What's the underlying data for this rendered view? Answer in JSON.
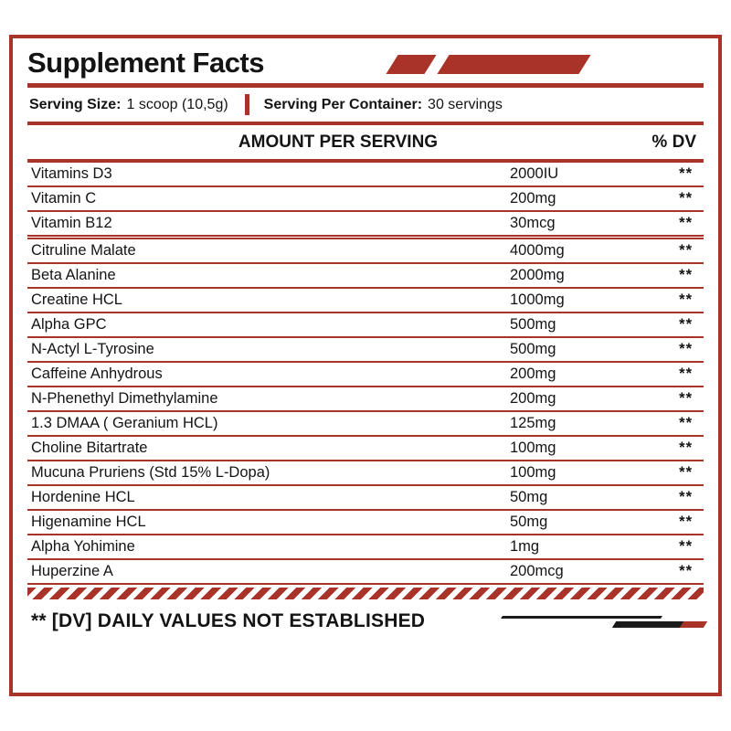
{
  "colors": {
    "accent_red": "#a93229",
    "text": "#141414",
    "deco_dark": "#1a1a1a"
  },
  "header": {
    "title": "Supplement Facts"
  },
  "serving": {
    "size_label": "Serving Size:",
    "size_value": "1 scoop (10,5g)",
    "container_label": "Serving Per Container:",
    "container_value": "30 servings"
  },
  "columns": {
    "amount_header": "AMOUNT PER SERVING",
    "dv_header": "% DV"
  },
  "table": {
    "vitamins": [
      {
        "name": "Vitamins D3",
        "amount": "2000IU",
        "dv": "**"
      },
      {
        "name": "Vitamin C",
        "amount": "200mg",
        "dv": "**"
      },
      {
        "name": "Vitamin B12",
        "amount": "30mcg",
        "dv": "**"
      }
    ],
    "ingredients": [
      {
        "name": "Citruline Malate",
        "amount": "4000mg",
        "dv": "**"
      },
      {
        "name": "Beta Alanine",
        "amount": "2000mg",
        "dv": "**"
      },
      {
        "name": "Creatine HCL",
        "amount": "1000mg",
        "dv": "**"
      },
      {
        "name": "Alpha GPC",
        "amount": "500mg",
        "dv": "**"
      },
      {
        "name": "N-Actyl L-Tyrosine",
        "amount": "500mg",
        "dv": "**"
      },
      {
        "name": "Caffeine Anhydrous",
        "amount": "200mg",
        "dv": "**"
      },
      {
        "name": "N-Phenethyl Dimethylamine",
        "amount": "200mg",
        "dv": "**"
      },
      {
        "name": "1.3 DMAA ( Geranium HCL)",
        "amount": "125mg",
        "dv": "**"
      },
      {
        "name": "Choline Bitartrate",
        "amount": "100mg",
        "dv": "**"
      },
      {
        "name": "Mucuna Pruriens (Std 15% L-Dopa)",
        "amount": "100mg",
        "dv": "**"
      },
      {
        "name": "Hordenine HCL",
        "amount": "50mg",
        "dv": "**"
      },
      {
        "name": "Higenamine HCL",
        "amount": "50mg",
        "dv": "**"
      },
      {
        "name": "Alpha Yohimine",
        "amount": "1mg",
        "dv": "**"
      },
      {
        "name": "Huperzine A",
        "amount": "200mcg",
        "dv": "**"
      }
    ]
  },
  "footnote": {
    "text": "** [DV] DAILY VALUES NOT ESTABLISHED"
  }
}
